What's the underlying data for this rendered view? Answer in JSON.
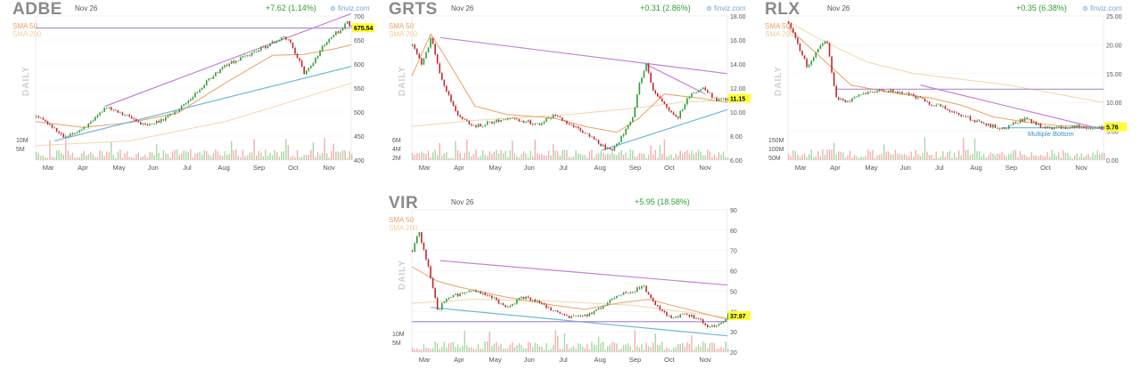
{
  "chart_data": [
    {
      "type": "candlestick",
      "ticker": "ADBE",
      "date": "Nov 26",
      "change": "+7.62 (1.14%)",
      "brand": "finviz.com",
      "sma50_label": "SMA 50",
      "sma200_label": "SMA 200",
      "daily_label": "DAILY",
      "last_price_label": "675.54",
      "last_price": 675.54,
      "months": [
        "Mar",
        "Apr",
        "May",
        "Jun",
        "Jul",
        "Aug",
        "Sep",
        "Oct",
        "Nov"
      ],
      "yticks": [
        "700",
        "650",
        "600",
        "550",
        "500",
        "450",
        "400"
      ],
      "ytick_values": [
        700,
        650,
        600,
        550,
        500,
        450,
        400
      ],
      "vol_labels": [
        "10M",
        "5M"
      ],
      "ylim": [
        400,
        700
      ],
      "price_path": [
        [
          0,
          490
        ],
        [
          0.04,
          475
        ],
        [
          0.09,
          445
        ],
        [
          0.13,
          460
        ],
        [
          0.18,
          480
        ],
        [
          0.22,
          512
        ],
        [
          0.26,
          502
        ],
        [
          0.3,
          488
        ],
        [
          0.35,
          470
        ],
        [
          0.4,
          485
        ],
        [
          0.45,
          505
        ],
        [
          0.5,
          535
        ],
        [
          0.55,
          570
        ],
        [
          0.6,
          598
        ],
        [
          0.65,
          612
        ],
        [
          0.7,
          628
        ],
        [
          0.75,
          645
        ],
        [
          0.78,
          655
        ],
        [
          0.8,
          650
        ],
        [
          0.83,
          612
        ],
        [
          0.85,
          580
        ],
        [
          0.87,
          598
        ],
        [
          0.89,
          615
        ],
        [
          0.91,
          640
        ],
        [
          0.93,
          652
        ],
        [
          0.95,
          665
        ],
        [
          0.97,
          672
        ],
        [
          0.985,
          690
        ],
        [
          1.0,
          675.54
        ]
      ],
      "sma50_path": [
        [
          0,
          480
        ],
        [
          0.15,
          468
        ],
        [
          0.3,
          478
        ],
        [
          0.45,
          498
        ],
        [
          0.6,
          560
        ],
        [
          0.75,
          618
        ],
        [
          0.85,
          620
        ],
        [
          0.95,
          632
        ],
        [
          1.0,
          640
        ]
      ],
      "sma200_path": [
        [
          0,
          430
        ],
        [
          0.3,
          440
        ],
        [
          0.6,
          480
        ],
        [
          0.8,
          520
        ],
        [
          1.0,
          560
        ]
      ],
      "trendlines": [
        {
          "color": "#c77fd9",
          "points": [
            [
              0.22,
              512
            ],
            [
              1.0,
              705
            ]
          ]
        },
        {
          "color": "#6fb6dc",
          "points": [
            [
              0.06,
              440
            ],
            [
              1.0,
              595
            ]
          ]
        },
        {
          "color": "#a890d8",
          "points": [
            [
              0,
              675
            ],
            [
              1.0,
              675
            ]
          ]
        }
      ]
    },
    {
      "type": "candlestick",
      "ticker": "GRTS",
      "date": "Nov 26",
      "change": "+0.31 (2.86%)",
      "brand": "finviz.com",
      "sma50_label": "SMA 50",
      "sma200_label": "SMA 200",
      "daily_label": "DAILY",
      "last_price_label": "11.15",
      "last_price": 11.15,
      "months": [
        "Mar",
        "Apr",
        "May",
        "Jun",
        "Jul",
        "Aug",
        "Sep",
        "Oct",
        "Nov"
      ],
      "yticks": [
        "18.00",
        "16.00",
        "14.00",
        "12.00",
        "10.00",
        "8.00",
        "6.00"
      ],
      "ytick_values": [
        18,
        16,
        14,
        12,
        10,
        8,
        6
      ],
      "vol_labels": [
        "6M",
        "4M",
        "2M"
      ],
      "ylim": [
        6,
        18
      ],
      "price_path": [
        [
          0,
          15.5
        ],
        [
          0.03,
          14
        ],
        [
          0.06,
          16.2
        ],
        [
          0.09,
          13
        ],
        [
          0.12,
          11
        ],
        [
          0.15,
          9.5
        ],
        [
          0.2,
          8.8
        ],
        [
          0.3,
          9.5
        ],
        [
          0.4,
          9
        ],
        [
          0.45,
          9.8
        ],
        [
          0.5,
          9
        ],
        [
          0.55,
          8.2
        ],
        [
          0.6,
          7.2
        ],
        [
          0.63,
          6.8
        ],
        [
          0.66,
          7.8
        ],
        [
          0.7,
          9.5
        ],
        [
          0.72,
          12.5
        ],
        [
          0.74,
          14
        ],
        [
          0.76,
          12
        ],
        [
          0.8,
          10.5
        ],
        [
          0.84,
          9.5
        ],
        [
          0.88,
          11.5
        ],
        [
          0.92,
          12
        ],
        [
          0.96,
          11
        ],
        [
          1.0,
          11.15
        ]
      ],
      "sma50_path": [
        [
          0,
          13
        ],
        [
          0.06,
          16.5
        ],
        [
          0.12,
          14
        ],
        [
          0.2,
          10.5
        ],
        [
          0.3,
          9.8
        ],
        [
          0.45,
          9.5
        ],
        [
          0.55,
          8.8
        ],
        [
          0.65,
          8.3
        ],
        [
          0.72,
          9.5
        ],
        [
          0.8,
          11.5
        ],
        [
          0.9,
          11.2
        ],
        [
          1.0,
          10.8
        ]
      ],
      "sma200_path": [
        [
          0,
          8.8
        ],
        [
          0.2,
          9.3
        ],
        [
          0.5,
          9.8
        ],
        [
          0.7,
          10.3
        ],
        [
          0.85,
          10.8
        ],
        [
          1.0,
          11
        ]
      ],
      "trendlines": [
        {
          "color": "#c77fd9",
          "points": [
            [
              0.09,
              16.2
            ],
            [
              1.0,
              13.2
            ]
          ]
        },
        {
          "color": "#c77fd9",
          "points": [
            [
              0.74,
              14
            ],
            [
              0.93,
              11.5
            ]
          ]
        },
        {
          "color": "#6fb6dc",
          "points": [
            [
              0.6,
              6.8
            ],
            [
              1.0,
              10.2
            ]
          ]
        }
      ]
    },
    {
      "type": "candlestick",
      "ticker": "RLX",
      "date": "Nov 26",
      "change": "+0.35 (6.38%)",
      "brand": "finviz.com",
      "sma50_label": "SMA 50",
      "sma200_label": "SMA 200",
      "daily_label": "DAILY",
      "last_price_label": "5.76",
      "last_price": 5.76,
      "annotation": "Multiple Bottom",
      "months": [
        "Mar",
        "Apr",
        "May",
        "Jun",
        "Jul",
        "Aug",
        "Sep",
        "Oct",
        "Nov"
      ],
      "yticks": [
        "25.00",
        "20.00",
        "15.00",
        "10.00",
        "5.00",
        "0.00"
      ],
      "ytick_values": [
        25,
        20,
        15,
        10,
        5,
        0
      ],
      "vol_labels": [
        "150M",
        "100M",
        "50M"
      ],
      "ylim": [
        0,
        25
      ],
      "price_path": [
        [
          0,
          24
        ],
        [
          0.03,
          20
        ],
        [
          0.06,
          16
        ],
        [
          0.09,
          19
        ],
        [
          0.12,
          21
        ],
        [
          0.15,
          11
        ],
        [
          0.18,
          10
        ],
        [
          0.22,
          11
        ],
        [
          0.27,
          12
        ],
        [
          0.32,
          12
        ],
        [
          0.38,
          11.5
        ],
        [
          0.44,
          10
        ],
        [
          0.5,
          9
        ],
        [
          0.56,
          7.5
        ],
        [
          0.62,
          6.2
        ],
        [
          0.68,
          5.5
        ],
        [
          0.72,
          6.5
        ],
        [
          0.75,
          7.2
        ],
        [
          0.8,
          5.8
        ],
        [
          0.86,
          5.5
        ],
        [
          0.92,
          6
        ],
        [
          0.96,
          5.2
        ],
        [
          1.0,
          5.76
        ]
      ],
      "sma50_path": [
        [
          0,
          23
        ],
        [
          0.1,
          18
        ],
        [
          0.2,
          13
        ],
        [
          0.35,
          11.5
        ],
        [
          0.45,
          10.8
        ],
        [
          0.55,
          9.5
        ],
        [
          0.65,
          7.5
        ],
        [
          0.75,
          6.6
        ],
        [
          0.85,
          6
        ],
        [
          1.0,
          5.7
        ]
      ],
      "sma200_path": [
        [
          0,
          24
        ],
        [
          0.1,
          21
        ],
        [
          0.25,
          17
        ],
        [
          0.4,
          15
        ],
        [
          0.55,
          14
        ],
        [
          0.7,
          13
        ],
        [
          0.85,
          11.5
        ],
        [
          1.0,
          10
        ]
      ],
      "trendlines": [
        {
          "color": "#a890d8",
          "points": [
            [
              0.15,
              12.3
            ],
            [
              1.0,
              12.3
            ]
          ]
        },
        {
          "color": "#c77fd9",
          "points": [
            [
              0.42,
              13
            ],
            [
              1.0,
              5.3
            ]
          ]
        },
        {
          "color": "#6fb6dc",
          "points": [
            [
              0.68,
              5.6
            ],
            [
              1.0,
              5.6
            ]
          ]
        }
      ]
    },
    {
      "type": "candlestick",
      "ticker": "VIR",
      "date": "Nov 26",
      "change": "+5.95 (18.58%)",
      "brand": "finviz.com",
      "sma50_label": "SMA 50",
      "sma200_label": "SMA 200",
      "daily_label": "DAILY",
      "last_price_label": "37.97",
      "last_price": 37.97,
      "months": [
        "Mar",
        "Apr",
        "May",
        "Jun",
        "Jul",
        "Aug",
        "Sep",
        "Oct",
        "Nov"
      ],
      "yticks": [
        "90",
        "80",
        "70",
        "60",
        "50",
        "40",
        "30",
        "20"
      ],
      "ytick_values": [
        90,
        80,
        70,
        60,
        50,
        40,
        30,
        20
      ],
      "vol_labels": [
        "10M",
        "5M"
      ],
      "ylim": [
        20,
        90
      ],
      "price_path": [
        [
          0,
          70
        ],
        [
          0.02,
          80
        ],
        [
          0.05,
          62
        ],
        [
          0.08,
          40
        ],
        [
          0.1,
          45
        ],
        [
          0.14,
          48
        ],
        [
          0.2,
          50
        ],
        [
          0.26,
          46
        ],
        [
          0.3,
          42
        ],
        [
          0.35,
          47
        ],
        [
          0.4,
          45
        ],
        [
          0.45,
          40
        ],
        [
          0.5,
          37
        ],
        [
          0.55,
          38
        ],
        [
          0.6,
          42
        ],
        [
          0.65,
          48
        ],
        [
          0.7,
          50
        ],
        [
          0.73,
          53
        ],
        [
          0.76,
          45
        ],
        [
          0.79,
          41
        ],
        [
          0.82,
          36
        ],
        [
          0.86,
          39
        ],
        [
          0.9,
          37
        ],
        [
          0.94,
          32
        ],
        [
          0.97,
          33
        ],
        [
          1.0,
          37.97
        ]
      ],
      "sma50_path": [
        [
          0,
          62
        ],
        [
          0.08,
          55
        ],
        [
          0.15,
          52
        ],
        [
          0.3,
          47
        ],
        [
          0.45,
          43
        ],
        [
          0.55,
          41
        ],
        [
          0.65,
          44
        ],
        [
          0.75,
          46
        ],
        [
          0.85,
          42
        ],
        [
          1.0,
          36
        ]
      ],
      "sma200_path": [
        [
          0,
          44
        ],
        [
          0.2,
          46
        ],
        [
          0.45,
          45
        ],
        [
          0.7,
          43
        ],
        [
          0.85,
          40
        ],
        [
          1.0,
          37
        ]
      ],
      "trendlines": [
        {
          "color": "#c77fd9",
          "points": [
            [
              0.09,
              65
            ],
            [
              1.0,
              53
            ]
          ]
        },
        {
          "color": "#6fb6dc",
          "points": [
            [
              0.06,
              42
            ],
            [
              1.0,
              28
            ]
          ]
        },
        {
          "color": "#a890d8",
          "points": [
            [
              0,
              35
            ],
            [
              1.0,
              35
            ]
          ]
        }
      ]
    }
  ]
}
